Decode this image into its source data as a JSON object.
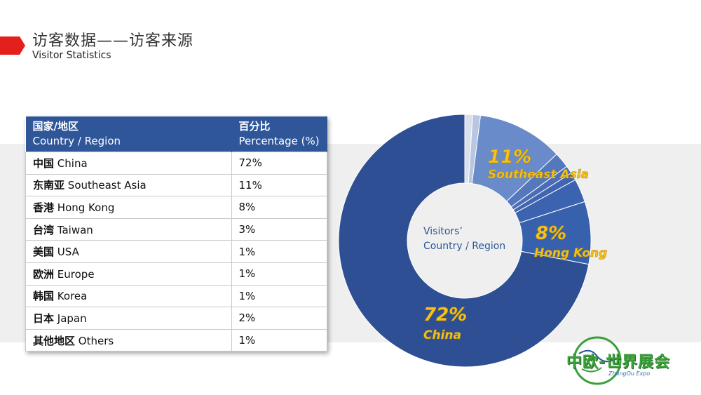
{
  "header": {
    "title_cn": "访客数据——访客来源",
    "title_en": "Visitor Statistics"
  },
  "table": {
    "col1_cn": "国家/地区",
    "col1_en": "Country / Region",
    "col2_cn": "百分比",
    "col2_en": "Percentage (%)",
    "rows": [
      {
        "cn": "中国",
        "en": "China",
        "pct": "72%"
      },
      {
        "cn": "东南亚",
        "en": "Southeast Asia",
        "pct": "11%"
      },
      {
        "cn": "香港",
        "en": "Hong Kong",
        "pct": "8%"
      },
      {
        "cn": "台湾",
        "en": "Taiwan",
        "pct": "3%"
      },
      {
        "cn": "美国",
        "en": "USA",
        "pct": "1%"
      },
      {
        "cn": "欧洲",
        "en": "Europe",
        "pct": "1%"
      },
      {
        "cn": "韩国",
        "en": "Korea",
        "pct": "1%"
      },
      {
        "cn": "日本",
        "en": "Japan",
        "pct": "2%"
      },
      {
        "cn": "其他地区",
        "en": "Others",
        "pct": "1%"
      }
    ]
  },
  "chart_data": {
    "type": "pie",
    "donut": true,
    "center_label_line1": "Visitors’",
    "center_label_line2": "Country / Region",
    "slices": [
      {
        "name": "Others",
        "value": 1,
        "color": "#d9dfeb",
        "label": ""
      },
      {
        "name": "Korea",
        "value": 1,
        "color": "#b8c6e0",
        "label": ""
      },
      {
        "name": "Southeast Asia",
        "value": 11,
        "color": "#6a8bc9",
        "label": "11%|Southeast Asia"
      },
      {
        "name": "Japan",
        "value": 2,
        "color": "#5578bd",
        "label": ""
      },
      {
        "name": "Europe",
        "value": 1,
        "color": "#4a6db6",
        "label": ""
      },
      {
        "name": "USA",
        "value": 1,
        "color": "#4166b1",
        "label": ""
      },
      {
        "name": "Taiwan",
        "value": 3,
        "color": "#3c63b0",
        "label": ""
      },
      {
        "name": "Hong Kong",
        "value": 8,
        "color": "#3760ad",
        "label": "8%|Hong Kong"
      },
      {
        "name": "China",
        "value": 72,
        "color": "#2e4f93",
        "label": "72%|China"
      }
    ]
  },
  "logo": {
    "cn": "中欧-世界展会",
    "en": "ZhongOu Expo"
  },
  "colors": {
    "header_blue": "#2e5698",
    "accent_red": "#e3201b",
    "label_yellow": "#f6c21a"
  }
}
